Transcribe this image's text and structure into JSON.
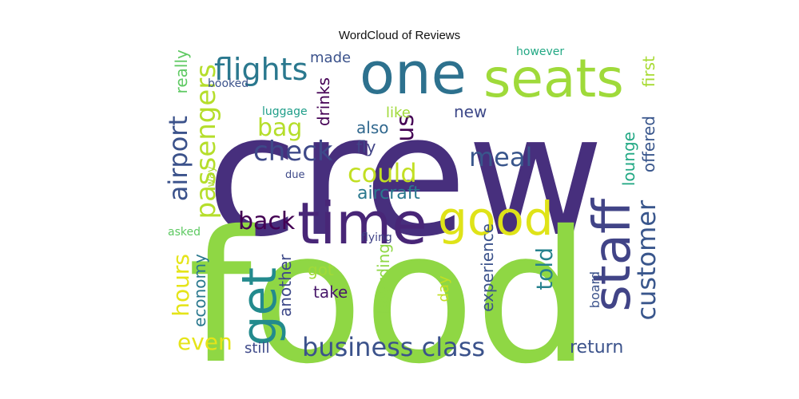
{
  "chart_data": {
    "type": "wordcloud",
    "title": "WordCloud of Reviews",
    "colormap": "viridis",
    "background": "#ffffff",
    "words": [
      {
        "text": "crew",
        "color": "#472f7d"
      },
      {
        "text": "food",
        "color": "#8fd744"
      },
      {
        "text": "time",
        "color": "#482677"
      },
      {
        "text": "one",
        "color": "#2d718e"
      },
      {
        "text": "seats",
        "color": "#9fda3a"
      },
      {
        "text": "good",
        "color": "#dfe318"
      },
      {
        "text": "staff",
        "color": "#414487"
      },
      {
        "text": "get",
        "color": "#238a8d"
      },
      {
        "text": "business class",
        "color": "#3b528b"
      },
      {
        "text": "flights",
        "color": "#2a788e"
      },
      {
        "text": "passengers",
        "color": "#b5de2b"
      },
      {
        "text": "customer",
        "color": "#39568c"
      },
      {
        "text": "check",
        "color": "#3e4989"
      },
      {
        "text": "could",
        "color": "#c2df23"
      },
      {
        "text": "back",
        "color": "#440154"
      },
      {
        "text": "meal",
        "color": "#39568c"
      },
      {
        "text": "airport",
        "color": "#3b528b"
      },
      {
        "text": "bag",
        "color": "#b5de2b"
      },
      {
        "text": "hours",
        "color": "#e5e419"
      },
      {
        "text": "even",
        "color": "#e5e419"
      },
      {
        "text": "told",
        "color": "#26828e"
      },
      {
        "text": "us",
        "color": "#440154"
      },
      {
        "text": "return",
        "color": "#3b528b"
      },
      {
        "text": "lounge",
        "color": "#22a884"
      },
      {
        "text": "experience",
        "color": "#3b528b"
      },
      {
        "text": "boarding",
        "color": "#8fd744"
      },
      {
        "text": "aircraft",
        "color": "#2a788e"
      },
      {
        "text": "offered",
        "color": "#39568c"
      },
      {
        "text": "first",
        "color": "#a8db34"
      },
      {
        "text": "drinks",
        "color": "#440154"
      },
      {
        "text": "economy",
        "color": "#2a788e"
      },
      {
        "text": "another",
        "color": "#3e4989"
      },
      {
        "text": "new",
        "color": "#3e4989"
      },
      {
        "text": "also",
        "color": "#31688e"
      },
      {
        "text": "fly",
        "color": "#414487"
      },
      {
        "text": "like",
        "color": "#a0da39"
      },
      {
        "text": "made",
        "color": "#3b528b"
      },
      {
        "text": "really",
        "color": "#5ec962"
      },
      {
        "text": "take",
        "color": "#48186a"
      },
      {
        "text": "got",
        "color": "#a0da39"
      },
      {
        "text": "still",
        "color": "#3e4989"
      },
      {
        "text": "day",
        "color": "#c2df23"
      },
      {
        "text": "board",
        "color": "#3b528b"
      },
      {
        "text": "luggage",
        "color": "#1f9e89"
      },
      {
        "text": "booked",
        "color": "#3b528b"
      },
      {
        "text": "however",
        "color": "#22a884"
      },
      {
        "text": "asked",
        "color": "#5ec962"
      },
      {
        "text": "flying",
        "color": "#414487"
      },
      {
        "text": "due",
        "color": "#3e4989"
      },
      {
        "text": "way",
        "color": "#addc30"
      }
    ]
  }
}
